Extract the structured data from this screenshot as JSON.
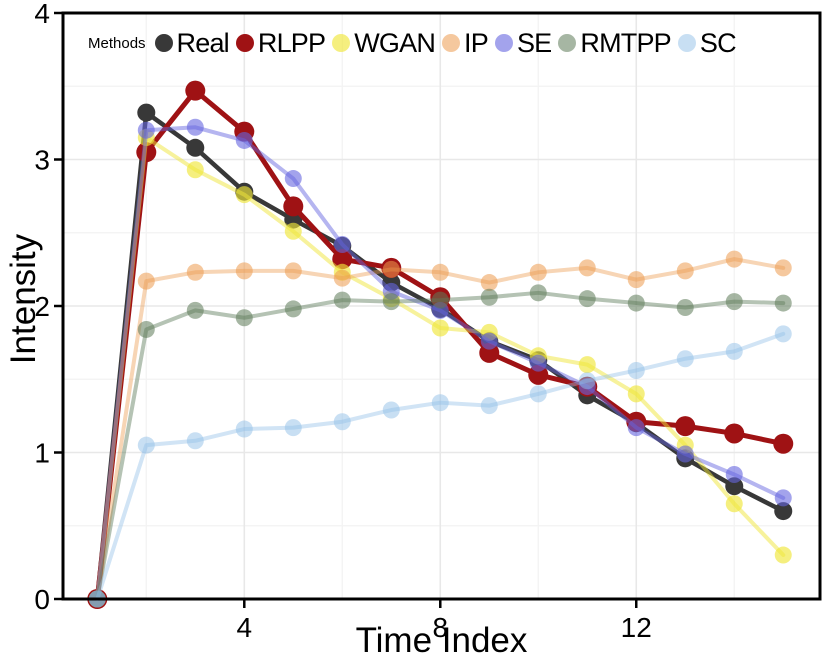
{
  "chart_data": {
    "type": "line",
    "title": "",
    "xlabel": "Time Index",
    "ylabel": "Intensity",
    "legend_title": "Methods",
    "legend_position": "top-inside",
    "xlim": [
      0.3,
      15.75
    ],
    "ylim": [
      0,
      4
    ],
    "x_ticks": [
      4,
      8,
      12
    ],
    "y_ticks": [
      0,
      1,
      2,
      3,
      4
    ],
    "x_minor_grid": [
      2,
      6,
      10,
      14
    ],
    "y_minor_grid": [
      0.5,
      1.5,
      2.5,
      3.5
    ],
    "grid": "on (very light major + minor)",
    "frame_color": "#000000",
    "x": [
      1,
      2,
      3,
      4,
      5,
      6,
      7,
      8,
      9,
      10,
      11,
      12,
      13,
      14,
      15
    ],
    "series": [
      {
        "name": "Real",
        "color": "#383838",
        "line_opacity": 1.0,
        "marker_opacity": 1.0,
        "values": [
          0,
          3.32,
          3.08,
          2.78,
          2.59,
          2.41,
          2.16,
          1.98,
          1.76,
          1.63,
          1.39,
          1.2,
          0.96,
          0.77,
          0.6
        ]
      },
      {
        "name": "RLPP",
        "color": "#9f1214",
        "line_opacity": 1.0,
        "marker_opacity": 1.0,
        "values": [
          0,
          3.05,
          3.47,
          3.19,
          2.68,
          2.32,
          2.26,
          2.06,
          1.68,
          1.53,
          1.45,
          1.21,
          1.18,
          1.13,
          1.06
        ]
      },
      {
        "name": "WGAN",
        "color": "#f0e63a",
        "line_opacity": 0.5,
        "marker_opacity": 0.65,
        "values": [
          0,
          3.15,
          2.93,
          2.76,
          2.51,
          2.23,
          2.05,
          1.85,
          1.82,
          1.66,
          1.6,
          1.4,
          1.05,
          0.65,
          0.3
        ]
      },
      {
        "name": "IP",
        "color": "#ed9a4e",
        "line_opacity": 0.42,
        "marker_opacity": 0.55,
        "values": [
          0,
          2.17,
          2.23,
          2.24,
          2.24,
          2.19,
          2.25,
          2.23,
          2.16,
          2.23,
          2.26,
          2.18,
          2.24,
          2.32,
          2.26
        ]
      },
      {
        "name": "SE",
        "color": "#6565e0",
        "line_opacity": 0.48,
        "marker_opacity": 0.6,
        "values": [
          0,
          3.2,
          3.22,
          3.13,
          2.87,
          2.42,
          2.1,
          1.97,
          1.76,
          1.61,
          1.45,
          1.17,
          0.99,
          0.85,
          0.69
        ]
      },
      {
        "name": "RMTPP",
        "color": "#5c7a58",
        "line_opacity": 0.45,
        "marker_opacity": 0.55,
        "values": [
          0,
          1.84,
          1.97,
          1.92,
          1.98,
          2.04,
          2.03,
          2.04,
          2.06,
          2.09,
          2.05,
          2.02,
          1.99,
          2.03,
          2.02
        ]
      },
      {
        "name": "SC",
        "color": "#92bfe8",
        "line_opacity": 0.42,
        "marker_opacity": 0.5,
        "values": [
          0,
          1.05,
          1.08,
          1.16,
          1.17,
          1.21,
          1.29,
          1.34,
          1.32,
          1.4,
          1.49,
          1.56,
          1.64,
          1.69,
          1.81
        ]
      }
    ]
  }
}
